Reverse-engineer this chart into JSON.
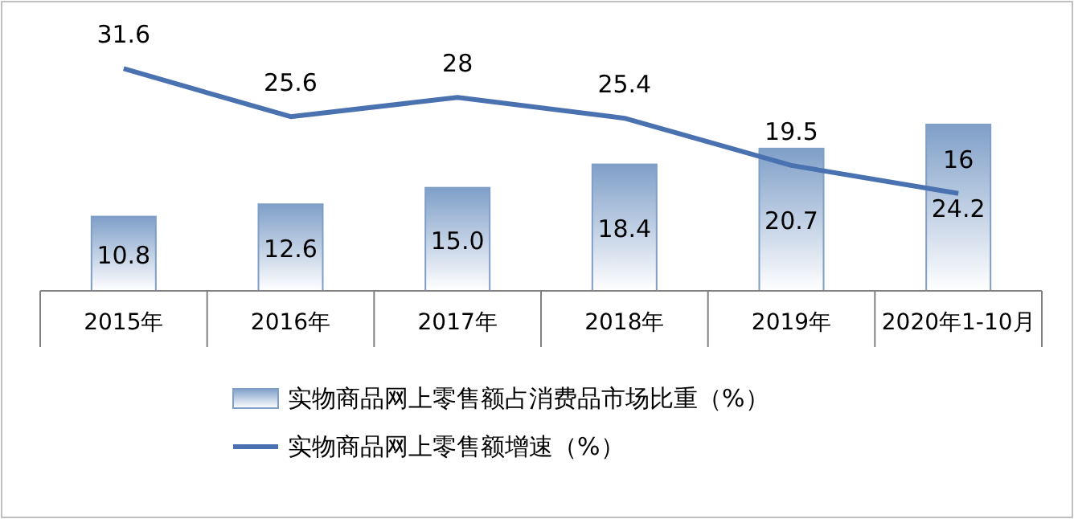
{
  "chart_data": {
    "type": "bar",
    "categories": [
      "2015年",
      "2016年",
      "2017年",
      "2018年",
      "2019年",
      "2020年1-10月"
    ],
    "series": [
      {
        "name": "实物商品网上零售额占消费品市场比重（%）",
        "color": "#7f9fc8",
        "values": [
          10.8,
          12.6,
          15.0,
          18.4,
          20.7,
          24.2
        ],
        "value_labels": [
          "10.8",
          "12.6",
          "15.0",
          "18.4",
          "20.7",
          "24.2"
        ]
      },
      {
        "name": "实物商品网上零售额增速（%）",
        "type": "line",
        "axis": "y2",
        "color": "#4a72b0",
        "values": [
          31.6,
          25.6,
          28,
          25.4,
          19.5,
          16
        ],
        "value_labels": [
          "31.6",
          "25.6",
          "28",
          "25.4",
          "19.5",
          "16"
        ]
      }
    ],
    "legend": "bottom",
    "marker": "none",
    "line_style": "solid"
  }
}
